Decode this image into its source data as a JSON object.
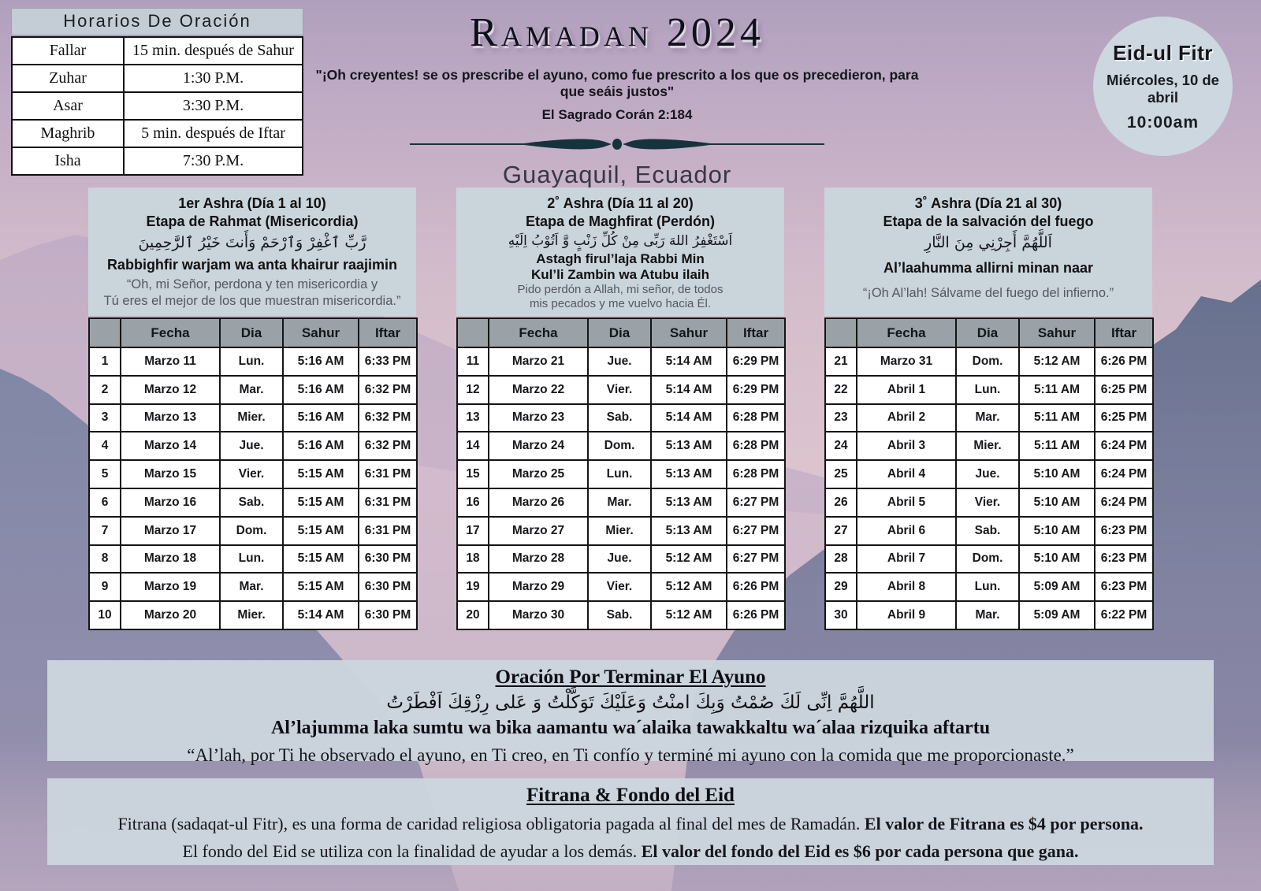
{
  "colors": {
    "accent_dark": "#16333d",
    "panel": "#cad4db",
    "table_header": "#9aa2a8",
    "circle": "#ccd7df"
  },
  "prayer_times": {
    "title": "Horarios De Oración",
    "rows": [
      [
        "Fallar",
        "15 min. después de Sahur"
      ],
      [
        "Zuhar",
        "1:30 P.M."
      ],
      [
        "Asar",
        "3:30 P.M."
      ],
      [
        "Maghrib",
        "5 min. después de Iftar"
      ],
      [
        "Isha",
        "7:30 P.M."
      ]
    ]
  },
  "header": {
    "title": "Ramadan 2024",
    "quote": "\"¡Oh creyentes! se os prescribe el ayuno, como fue prescrito a los que os precedieron, para que seáis justos\"",
    "quote_source": "El Sagrado Corán  2:184",
    "location": "Guayaquil, Ecuador"
  },
  "eid": {
    "title": "Eid-ul Fitr",
    "date": "Miércoles, 10 de abril",
    "time": "10:00am"
  },
  "table_headers": [
    "",
    "Fecha",
    "Dia",
    "Sahur",
    "Iftar"
  ],
  "ashras": [
    {
      "title": "1er Ashra (Día 1 al 10)",
      "subtitle": "Etapa de Rahmat (Misericordia)",
      "arabic": "رَّبِّ ٱغْفِرْ وَٱرْحَمْ وَأَنتَ خَيْرُ ٱلرَّٰحِمِينَ",
      "transliteration": "Rabbighfir warjam wa anta khairur raajimin",
      "translation": "“Oh, mi Señor, perdona y ten misericordia y\nTú eres el mejor de los que muestran misericordia.”",
      "rows": [
        [
          "1",
          "Marzo 11",
          "Lun.",
          "5:16 AM",
          "6:33 PM"
        ],
        [
          "2",
          "Marzo 12",
          "Mar.",
          "5:16 AM",
          "6:32 PM"
        ],
        [
          "3",
          "Marzo 13",
          "Mier.",
          "5:16 AM",
          "6:32 PM"
        ],
        [
          "4",
          "Marzo 14",
          "Jue.",
          "5:16 AM",
          "6:32 PM"
        ],
        [
          "5",
          "Marzo 15",
          "Vier.",
          "5:15 AM",
          "6:31 PM"
        ],
        [
          "6",
          "Marzo 16",
          "Sab.",
          "5:15 AM",
          "6:31 PM"
        ],
        [
          "7",
          "Marzo 17",
          "Dom.",
          "5:15 AM",
          "6:31 PM"
        ],
        [
          "8",
          "Marzo 18",
          "Lun.",
          "5:15 AM",
          "6:30 PM"
        ],
        [
          "9",
          "Marzo 19",
          "Mar.",
          "5:15 AM",
          "6:30 PM"
        ],
        [
          "10",
          "Marzo 20",
          "Mier.",
          "5:14 AM",
          "6:30 PM"
        ]
      ]
    },
    {
      "title": "2˚ Ashra (Día 11 al 20)",
      "subtitle": "Etapa de Maghfirat (Perdón)",
      "arabic": "اَسْتَغْفِرُ اللهَ رَبِّى مِنْ كُلِّ زَنْبٍ وَّ اَتُوْبُ اِلَيْهِ",
      "transliteration": "Astagh firul’laja Rabbi Min\nKul’li Zambin wa Atubu ilaih",
      "translation": "Pido perdón a Allah, mi señor, de todos\nmis pecados y me vuelvo hacia Él.",
      "rows": [
        [
          "11",
          "Marzo 21",
          "Jue.",
          "5:14 AM",
          "6:29 PM"
        ],
        [
          "12",
          "Marzo 22",
          "Vier.",
          "5:14 AM",
          "6:29 PM"
        ],
        [
          "13",
          "Marzo 23",
          "Sab.",
          "5:14 AM",
          "6:28 PM"
        ],
        [
          "14",
          "Marzo 24",
          "Dom.",
          "5:13 AM",
          "6:28 PM"
        ],
        [
          "15",
          "Marzo 25",
          "Lun.",
          "5:13 AM",
          "6:28 PM"
        ],
        [
          "16",
          "Marzo 26",
          "Mar.",
          "5:13 AM",
          "6:27 PM"
        ],
        [
          "17",
          "Marzo 27",
          "Mier.",
          "5:13 AM",
          "6:27 PM"
        ],
        [
          "18",
          "Marzo 28",
          "Jue.",
          "5:12 AM",
          "6:27 PM"
        ],
        [
          "19",
          "Marzo 29",
          "Vier.",
          "5:12 AM",
          "6:26 PM"
        ],
        [
          "20",
          "Marzo 30",
          "Sab.",
          "5:12 AM",
          "6:26 PM"
        ]
      ]
    },
    {
      "title": "3˚ Ashra (Día 21 al 30)",
      "subtitle": "Etapa de la salvación del fuego",
      "arabic": "اَللَّهُمَّ أَجِرْنِي مِنَ النَّارِ",
      "transliteration": "Al’laahumma allirni minan naar",
      "translation": "“¡Oh Al’lah! Sálvame del fuego del infierno.”",
      "rows": [
        [
          "21",
          "Marzo 31",
          "Dom.",
          "5:12 AM",
          "6:26 PM"
        ],
        [
          "22",
          "Abril 1",
          "Lun.",
          "5:11 AM",
          "6:25 PM"
        ],
        [
          "23",
          "Abril 2",
          "Mar.",
          "5:11 AM",
          "6:25 PM"
        ],
        [
          "24",
          "Abril 3",
          "Mier.",
          "5:11 AM",
          "6:24 PM"
        ],
        [
          "25",
          "Abril 4",
          "Jue.",
          "5:10 AM",
          "6:24 PM"
        ],
        [
          "26",
          "Abril 5",
          "Vier.",
          "5:10 AM",
          "6:24 PM"
        ],
        [
          "27",
          "Abril 6",
          "Sab.",
          "5:10 AM",
          "6:23 PM"
        ],
        [
          "28",
          "Abril 7",
          "Dom.",
          "5:10 AM",
          "6:23 PM"
        ],
        [
          "29",
          "Abril 8",
          "Lun.",
          "5:09 AM",
          "6:23 PM"
        ],
        [
          "30",
          "Abril 9",
          "Mar.",
          "5:09 AM",
          "6:22 PM"
        ]
      ]
    }
  ],
  "dua_iftar": {
    "title": "Oración Por Terminar El Ayuno",
    "arabic": "اللَّهُمَّ اِنِّى لَكَ صُمْتُ وَبِكَ امنْتُ وَعَلَيْكَ تَوَكَّلْتُ وَ عَلى رِزْقِكَ اَفْطَرْتُ",
    "transliteration": "Al’lajumma laka sumtu wa bika aamantu wa´alaika tawakkaltu wa´alaa rizquika aftartu",
    "translation": "“Al’lah, por Ti he observado el ayuno, en Ti creo, en Ti confío y terminé mi ayuno con la comida que me proporcionaste.”"
  },
  "fitrana": {
    "title": "Fitrana & Fondo del Eid",
    "line1_normal": "Fitrana (sadaqat-ul Fitr), es una forma de caridad religiosa obligatoria pagada al final del mes de Ramadán.",
    "line1_bold": "El valor de Fitrana es $4 por persona.",
    "line2_normal": "El fondo del Eid se utiliza con la finalidad de ayudar a los demás.",
    "line2_bold": "El valor del fondo del Eid es $6 por cada persona que gana."
  }
}
